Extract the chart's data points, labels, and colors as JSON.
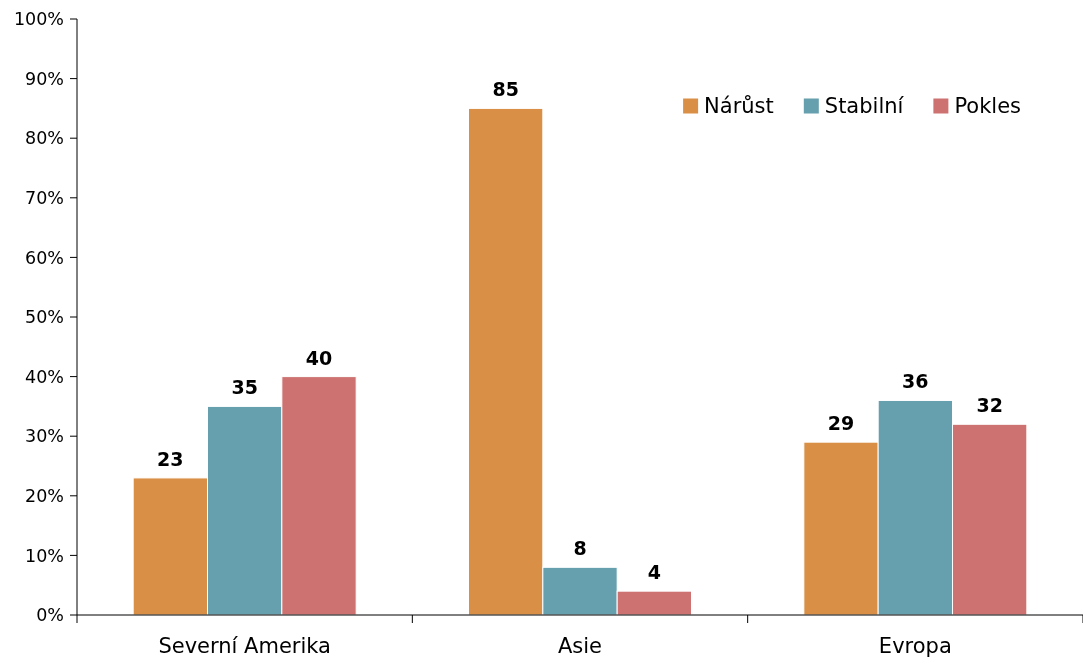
{
  "chart_data": {
    "type": "bar",
    "categories": [
      "Severní Amerika",
      "Asie",
      "Evropa"
    ],
    "series": [
      {
        "name": "Nárůst",
        "color": "#d98f45",
        "values": [
          23,
          85,
          29
        ]
      },
      {
        "name": "Stabilní",
        "color": "#669fad",
        "values": [
          35,
          8,
          36
        ]
      },
      {
        "name": "Pokles",
        "color": "#cd7270",
        "values": [
          40,
          4,
          32
        ]
      }
    ],
    "ylim": [
      0,
      100
    ],
    "yticks": [
      {
        "value": 0,
        "label": "0%"
      },
      {
        "value": 10,
        "label": "10%"
      },
      {
        "value": 20,
        "label": "20%"
      },
      {
        "value": 30,
        "label": "30%"
      },
      {
        "value": 40,
        "label": "40%"
      },
      {
        "value": 50,
        "label": "50%"
      },
      {
        "value": 60,
        "label": "60%"
      },
      {
        "value": 70,
        "label": "70%"
      },
      {
        "value": 80,
        "label": "80%"
      },
      {
        "value": 90,
        "label": "90%"
      },
      {
        "value": 100,
        "label": "100%"
      }
    ],
    "data_labels": true,
    "legend": "top right",
    "grid": false
  }
}
